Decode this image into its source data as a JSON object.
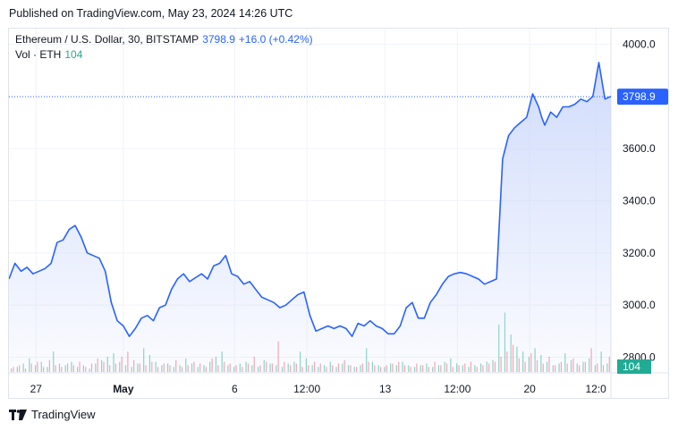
{
  "header": {
    "published": "Published on TradingView.com, May 23, 2024 14:26 UTC"
  },
  "legend": {
    "symbol": "Ethereum / U.S. Dollar, 30, BITSTAMP",
    "last": "3798.9",
    "change": "+16.0 (+0.42%)",
    "volume_label": "Vol · ETH",
    "volume_value": "104"
  },
  "footer": {
    "brand": "TradingView"
  },
  "colors": {
    "line": "#2962ff",
    "area_top": "#c9d6fb",
    "up_volume": "#22ab94",
    "down_volume": "#f7525f",
    "grid": "#f0f3fa"
  },
  "chart_data": {
    "type": "area",
    "title": "Ethereum / U.S. Dollar, 30, BITSTAMP",
    "ylim": [
      2740,
      4060
    ],
    "y_ticks": [
      "4000.0",
      "3600.0",
      "3400.0",
      "3200.0",
      "3000.0",
      "2800.0"
    ],
    "y_tick_values": [
      4000,
      3600,
      3400,
      3200,
      3000,
      2800
    ],
    "x_tick_labels": [
      "27",
      "May",
      "6",
      "12:00",
      "13",
      "12:00",
      "20",
      "12:0"
    ],
    "x_tick_pos": [
      0.045,
      0.19,
      0.375,
      0.495,
      0.625,
      0.745,
      0.865,
      0.975
    ],
    "last_price": 3798.9,
    "last_label": "3798.9",
    "volume_badge": "104",
    "series": [
      {
        "x": [
          0,
          0.01,
          0.02,
          0.03,
          0.04,
          0.05,
          0.06,
          0.07,
          0.08,
          0.09,
          0.1,
          0.11,
          0.12,
          0.13,
          0.14,
          0.15,
          0.16,
          0.17,
          0.18,
          0.19,
          0.2,
          0.21,
          0.22,
          0.23,
          0.24,
          0.25,
          0.26,
          0.27,
          0.28,
          0.29,
          0.3,
          0.31,
          0.32,
          0.33,
          0.34,
          0.35,
          0.36,
          0.37,
          0.38,
          0.39,
          0.4,
          0.41,
          0.42,
          0.43,
          0.44,
          0.45,
          0.46,
          0.47,
          0.48,
          0.49,
          0.5,
          0.51,
          0.52,
          0.53,
          0.54,
          0.55,
          0.56,
          0.57,
          0.58,
          0.59,
          0.6,
          0.61,
          0.62,
          0.63,
          0.64,
          0.65,
          0.66,
          0.67,
          0.68,
          0.69,
          0.7,
          0.71,
          0.72,
          0.73,
          0.74,
          0.75,
          0.76,
          0.77,
          0.78,
          0.79,
          0.8,
          0.81,
          0.82,
          0.83,
          0.84,
          0.85,
          0.86,
          0.87,
          0.88,
          0.885,
          0.89,
          0.9,
          0.91,
          0.92,
          0.93,
          0.94,
          0.95,
          0.96,
          0.97,
          0.98,
          0.99,
          1
        ],
        "values": [
          3100,
          3160,
          3130,
          3145,
          3120,
          3130,
          3140,
          3160,
          3240,
          3250,
          3290,
          3305,
          3260,
          3200,
          3190,
          3180,
          3130,
          3010,
          2940,
          2920,
          2880,
          2910,
          2950,
          2960,
          2940,
          2990,
          3000,
          3060,
          3100,
          3120,
          3090,
          3105,
          3120,
          3100,
          3150,
          3160,
          3190,
          3120,
          3110,
          3080,
          3090,
          3060,
          3030,
          3020,
          3010,
          2990,
          3000,
          3020,
          3040,
          3050,
          2960,
          2900,
          2910,
          2920,
          2910,
          2920,
          2910,
          2880,
          2930,
          2920,
          2940,
          2920,
          2910,
          2890,
          2890,
          2920,
          2990,
          3010,
          2950,
          2950,
          3010,
          3040,
          3080,
          3110,
          3120,
          3125,
          3120,
          3110,
          3100,
          3080,
          3090,
          3100,
          3560,
          3650,
          3680,
          3700,
          3720,
          3810,
          3760,
          3720,
          3690,
          3740,
          3720,
          3760,
          3760,
          3770,
          3790,
          3780,
          3800,
          3930,
          3790,
          3800
        ]
      }
    ],
    "volume_up": [
      2,
      3,
      5,
      8,
      4,
      6,
      3,
      12,
      5,
      4,
      6,
      3,
      4,
      2,
      5,
      7,
      9,
      11,
      6,
      4,
      3,
      5,
      14,
      10,
      6,
      4,
      5,
      3,
      4,
      8,
      5,
      3,
      4,
      6,
      9,
      12,
      4,
      3,
      5,
      6,
      4,
      3,
      7,
      5,
      4,
      3,
      5,
      6,
      12,
      8,
      4,
      3,
      4,
      6,
      3,
      5,
      4,
      3,
      4,
      14,
      6,
      4,
      3,
      5,
      4,
      6,
      4,
      3,
      4,
      5,
      3,
      4,
      6,
      8,
      5,
      4,
      3,
      4,
      5,
      6,
      7,
      28,
      35,
      22,
      15,
      12,
      9,
      14,
      10,
      6,
      4,
      5,
      11,
      7,
      5,
      6,
      8,
      4,
      12,
      5
    ],
    "volume_down": [
      3,
      4,
      2,
      5,
      6,
      3,
      7,
      4,
      3,
      5,
      4,
      6,
      3,
      5,
      8,
      6,
      4,
      5,
      9,
      12,
      7,
      5,
      4,
      6,
      3,
      5,
      4,
      7,
      3,
      4,
      6,
      5,
      3,
      8,
      4,
      6,
      5,
      4,
      3,
      5,
      9,
      4,
      6,
      5,
      18,
      6,
      4,
      5,
      3,
      4,
      6,
      5,
      3,
      4,
      5,
      7,
      4,
      3,
      5,
      6,
      4,
      3,
      4,
      5,
      6,
      4,
      3,
      5,
      4,
      3,
      6,
      4,
      5,
      3,
      4,
      5,
      6,
      3,
      4,
      5,
      6,
      9,
      12,
      16,
      8,
      6,
      11,
      7,
      5,
      9,
      4,
      6,
      5,
      8,
      4,
      6,
      14,
      5,
      4,
      9
    ]
  }
}
